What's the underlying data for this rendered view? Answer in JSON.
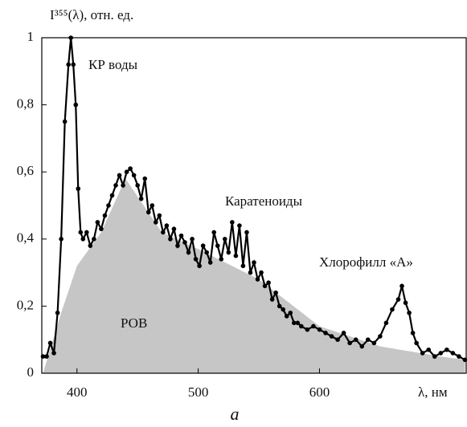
{
  "chart_data": {
    "type": "line",
    "ylabel": "I³⁵⁵(λ), отн. ед.",
    "xlabel": "λ, нм",
    "caption": "а",
    "annotations": [
      "КР воды",
      "Каратеноиды",
      "Хлорофилл «А»",
      "РОВ"
    ],
    "xlim": [
      371,
      721
    ],
    "xticks": [
      400,
      500,
      600
    ],
    "ylim": [
      0,
      1
    ],
    "yticks": [
      0,
      {
        "value": 0.2,
        "label": "0,2"
      },
      {
        "value": 0.4,
        "label": "0,4"
      },
      {
        "value": 0.6,
        "label": "0,6"
      },
      {
        "value": 0.8,
        "label": "0,8"
      },
      1
    ],
    "area": {
      "color": "#c6c6c6",
      "x": [
        372,
        387,
        400,
        420,
        440,
        470,
        500,
        550,
        600,
        650,
        700,
        720
      ],
      "values": [
        0,
        0.18,
        0.32,
        0.42,
        0.58,
        0.42,
        0.37,
        0.28,
        0.14,
        0.08,
        0.05,
        0.04
      ]
    },
    "series": [
      {
        "color": "#000000",
        "x": [
          372,
          375,
          378,
          381,
          384,
          387,
          390,
          393,
          395,
          397,
          399,
          401,
          403,
          405,
          408,
          411,
          414,
          417,
          420,
          423,
          426,
          429,
          432,
          435,
          438,
          441,
          444,
          447,
          450,
          453,
          456,
          459,
          462,
          465,
          468,
          471,
          474,
          477,
          480,
          483,
          486,
          489,
          492,
          495,
          498,
          501,
          504,
          507,
          510,
          513,
          516,
          519,
          522,
          525,
          528,
          531,
          534,
          537,
          540,
          543,
          546,
          549,
          552,
          555,
          558,
          561,
          564,
          567,
          570,
          573,
          576,
          579,
          582,
          585,
          590,
          595,
          600,
          605,
          610,
          615,
          620,
          625,
          630,
          635,
          640,
          645,
          650,
          655,
          660,
          665,
          668,
          671,
          674,
          677,
          680,
          685,
          690,
          695,
          700,
          705,
          710,
          715,
          720
        ],
        "values": [
          0.05,
          0.05,
          0.09,
          0.06,
          0.18,
          0.4,
          0.75,
          0.92,
          1.0,
          0.92,
          0.8,
          0.55,
          0.42,
          0.4,
          0.42,
          0.38,
          0.4,
          0.45,
          0.43,
          0.47,
          0.5,
          0.53,
          0.56,
          0.59,
          0.56,
          0.6,
          0.61,
          0.59,
          0.56,
          0.52,
          0.58,
          0.48,
          0.5,
          0.45,
          0.47,
          0.42,
          0.44,
          0.4,
          0.43,
          0.38,
          0.41,
          0.39,
          0.36,
          0.4,
          0.34,
          0.32,
          0.38,
          0.36,
          0.33,
          0.42,
          0.38,
          0.34,
          0.4,
          0.36,
          0.45,
          0.35,
          0.44,
          0.32,
          0.42,
          0.3,
          0.33,
          0.28,
          0.3,
          0.26,
          0.27,
          0.22,
          0.24,
          0.2,
          0.19,
          0.17,
          0.18,
          0.15,
          0.15,
          0.14,
          0.13,
          0.14,
          0.13,
          0.12,
          0.11,
          0.1,
          0.12,
          0.09,
          0.1,
          0.08,
          0.1,
          0.09,
          0.11,
          0.15,
          0.19,
          0.22,
          0.26,
          0.21,
          0.18,
          0.12,
          0.09,
          0.06,
          0.07,
          0.05,
          0.06,
          0.07,
          0.06,
          0.05,
          0.04
        ]
      }
    ]
  }
}
